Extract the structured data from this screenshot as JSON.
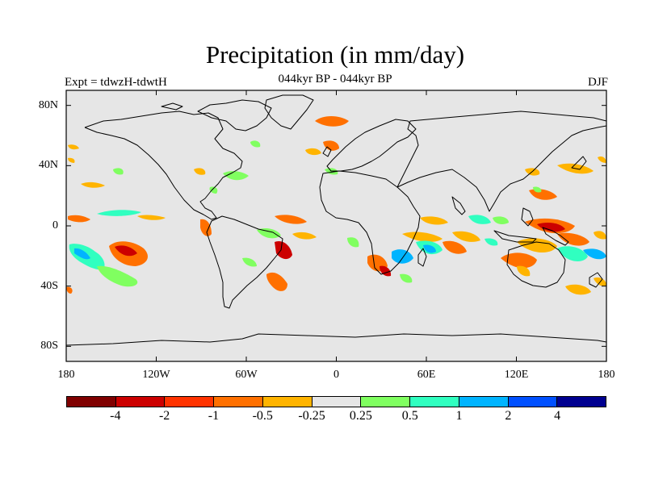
{
  "title": "Precipitation (in mm/day)",
  "subtitle": "044kyr BP - 044kyr BP",
  "experiment": "Expt = tdwzH-tdwtH",
  "season": "DJF",
  "map": {
    "background": "#e6e6e6",
    "lat_labels": [
      "80N",
      "40N",
      "0",
      "40S",
      "80S"
    ],
    "lon_labels": [
      "180",
      "120W",
      "60W",
      "0",
      "60E",
      "120E",
      "180"
    ]
  },
  "colorbar": {
    "colors": [
      "#800000",
      "#cc0000",
      "#ff3300",
      "#ff7000",
      "#ffb400",
      "#e6e6e6",
      "#80ff60",
      "#30ffc0",
      "#00b4ff",
      "#0050ff",
      "#000090"
    ],
    "labels": [
      "-4",
      "-2",
      "-1",
      "-0.5",
      "-0.25",
      "0.25",
      "0.5",
      "1",
      "2",
      "4"
    ]
  }
}
